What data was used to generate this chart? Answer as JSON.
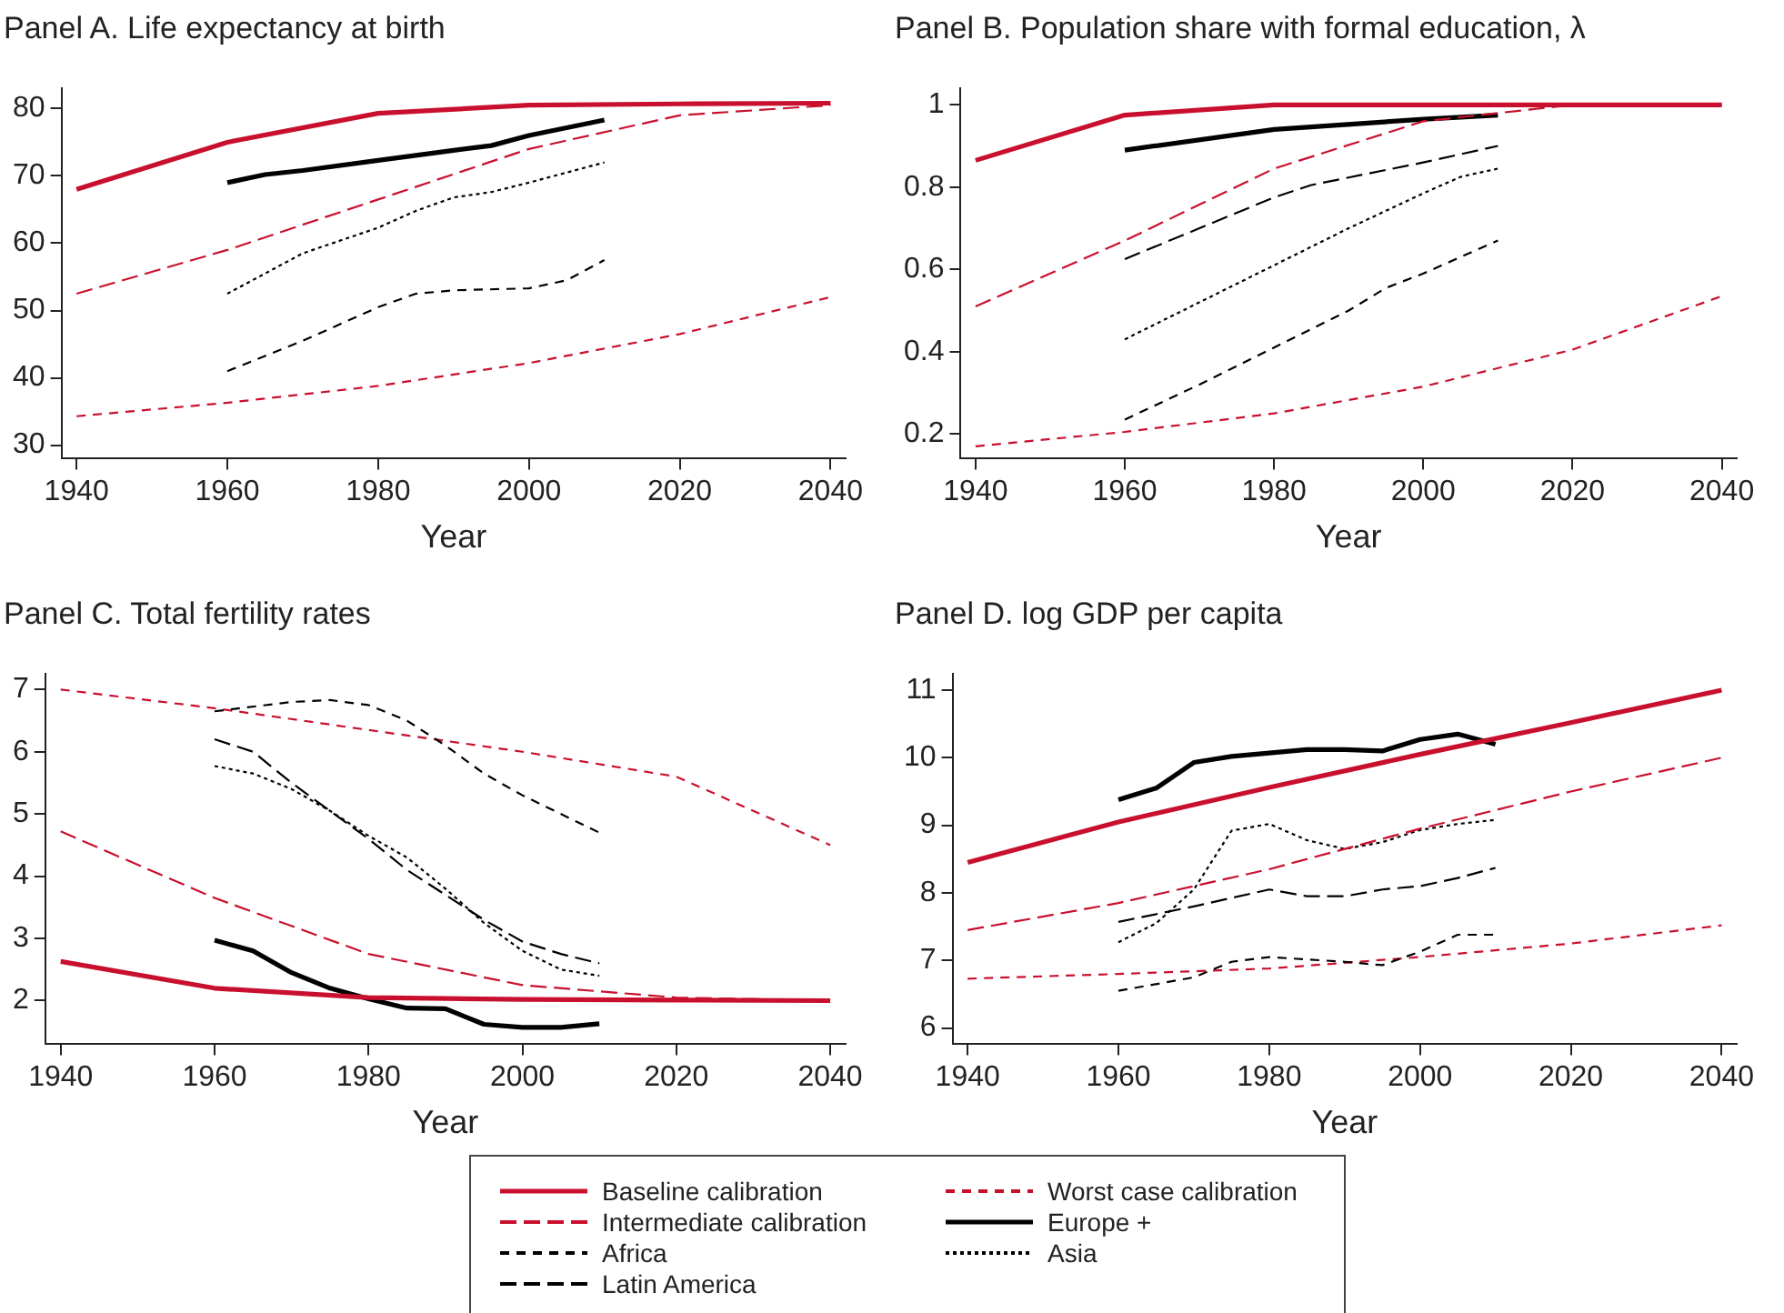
{
  "chart_data": [
    {
      "type": "line",
      "title": "Panel A. Life expectancy at birth",
      "xlabel": "Year",
      "xlim": [
        1938,
        2042
      ],
      "xticks": [
        1940,
        1960,
        1980,
        2000,
        2020,
        2040
      ],
      "ylim": [
        28,
        83
      ],
      "yticks": [
        30,
        40,
        50,
        60,
        70,
        80
      ],
      "grid": false,
      "marker": "none",
      "series": [
        {
          "color": "#c8102e",
          "line_style": "solid",
          "x": [
            1940,
            1960,
            1980,
            2000,
            2020,
            2040
          ],
          "values": [
            68,
            75,
            79.3,
            80.5,
            80.7,
            80.8
          ]
        },
        {
          "color": "#c8102e",
          "line_style": "longdash",
          "x": [
            1940,
            1960,
            1980,
            2000,
            2020,
            2040
          ],
          "values": [
            52.5,
            59,
            66.5,
            74,
            79,
            80.5
          ]
        },
        {
          "color": "#000000",
          "line_style": "dashed",
          "x": [
            1960,
            1970,
            1980,
            1985,
            1990,
            2000,
            2005,
            2010
          ],
          "values": [
            41,
            45.5,
            50.5,
            52.5,
            53,
            53.3,
            54.5,
            57.5
          ]
        },
        {
          "color": "#c8102e",
          "line_style": "dashed",
          "x": [
            1940,
            1960,
            1980,
            2000,
            2020,
            2040
          ],
          "values": [
            34.3,
            36.3,
            38.8,
            42.2,
            46.5,
            52
          ]
        },
        {
          "color": "#000000",
          "line_style": "solid",
          "x": [
            1960,
            1965,
            1970,
            1980,
            1990,
            1995,
            2000,
            2010
          ],
          "values": [
            69,
            70.2,
            70.8,
            72.3,
            73.8,
            74.5,
            76,
            78.3
          ]
        },
        {
          "color": "#000000",
          "line_style": "dotted",
          "x": [
            1960,
            1970,
            1980,
            1985,
            1990,
            1995,
            2000,
            2010
          ],
          "values": [
            52.5,
            58.5,
            62.3,
            64.8,
            66.8,
            67.6,
            69,
            72
          ]
        }
      ]
    },
    {
      "type": "line",
      "title": "Panel B. Population share with formal education, λ",
      "xlabel": "Year",
      "xlim": [
        1938,
        2042
      ],
      "xticks": [
        1940,
        1960,
        1980,
        2000,
        2020,
        2040
      ],
      "ylim": [
        0.14,
        1.04
      ],
      "yticks": [
        0.2,
        0.4,
        0.6,
        0.8,
        1
      ],
      "grid": false,
      "legend": "bottom",
      "marker": "none",
      "series": [
        {
          "name": "Baseline calibration",
          "color": "#c8102e",
          "line_style": "solid",
          "x": [
            1940,
            1960,
            1980,
            2000,
            2020,
            2040
          ],
          "values": [
            0.865,
            0.975,
            1,
            1,
            1,
            1
          ]
        },
        {
          "name": "Intermediate calibration",
          "color": "#c8102e",
          "line_style": "longdash",
          "x": [
            1940,
            1960,
            1980,
            2000,
            2020,
            2040
          ],
          "values": [
            0.51,
            0.67,
            0.845,
            0.96,
            1,
            1
          ]
        },
        {
          "name": "Africa",
          "color": "#000000",
          "line_style": "dashed",
          "x": [
            1960,
            1970,
            1980,
            1990,
            1995,
            2000,
            2010
          ],
          "values": [
            0.235,
            0.32,
            0.41,
            0.5,
            0.555,
            0.59,
            0.67
          ]
        },
        {
          "name": "Latin America",
          "color": "#000000",
          "line_style": "longdash",
          "x": [
            1960,
            1970,
            1980,
            1985,
            2000,
            2010
          ],
          "values": [
            0.625,
            0.7,
            0.775,
            0.805,
            0.86,
            0.9
          ]
        },
        {
          "name": "Worst case calibration",
          "color": "#c8102e",
          "line_style": "dashed",
          "x": [
            1940,
            1960,
            1980,
            2000,
            2020,
            2040
          ],
          "values": [
            0.17,
            0.205,
            0.25,
            0.315,
            0.405,
            0.535
          ]
        },
        {
          "name": "Europe +",
          "color": "#000000",
          "line_style": "solid",
          "x": [
            1960,
            1980,
            2000,
            2010
          ],
          "values": [
            0.89,
            0.94,
            0.965,
            0.975
          ]
        },
        {
          "name": "Asia",
          "color": "#000000",
          "line_style": "dotted",
          "x": [
            1960,
            1980,
            1990,
            2000,
            2005,
            2010
          ],
          "values": [
            0.43,
            0.61,
            0.7,
            0.785,
            0.825,
            0.845
          ]
        }
      ]
    },
    {
      "type": "line",
      "title": "Panel C. Total fertility rates",
      "xlabel": "Year",
      "xlim": [
        1938,
        2042
      ],
      "xticks": [
        1940,
        1960,
        1980,
        2000,
        2020,
        2040
      ],
      "ylim": [
        1.3,
        7.25
      ],
      "yticks": [
        2,
        3,
        4,
        5,
        6,
        7
      ],
      "grid": false,
      "marker": "none",
      "series": [
        {
          "color": "#c8102e",
          "line_style": "solid",
          "x": [
            1940,
            1960,
            1980,
            2000,
            2020,
            2040
          ],
          "values": [
            2.63,
            2.2,
            2.05,
            2.02,
            2.01,
            2
          ]
        },
        {
          "color": "#c8102e",
          "line_style": "longdash",
          "x": [
            1940,
            1960,
            1980,
            2000,
            2020,
            2040
          ],
          "values": [
            4.72,
            3.65,
            2.75,
            2.25,
            2.05,
            2
          ]
        },
        {
          "color": "#000000",
          "line_style": "dashed",
          "x": [
            1960,
            1970,
            1975,
            1980,
            1985,
            1990,
            1995,
            2000,
            2010
          ],
          "values": [
            6.65,
            6.8,
            6.83,
            6.75,
            6.5,
            6.1,
            5.65,
            5.3,
            4.7
          ]
        },
        {
          "color": "#000000",
          "line_style": "longdash",
          "x": [
            1960,
            1965,
            1970,
            1975,
            1980,
            1985,
            1990,
            1995,
            2000,
            2005,
            2010
          ],
          "values": [
            6.2,
            6,
            5.5,
            5.05,
            4.6,
            4.1,
            3.7,
            3.3,
            2.95,
            2.75,
            2.6
          ]
        },
        {
          "color": "#c8102e",
          "line_style": "dashed",
          "x": [
            1940,
            1960,
            1980,
            2000,
            2020,
            2040
          ],
          "values": [
            7,
            6.7,
            6.35,
            6,
            5.6,
            4.5
          ]
        },
        {
          "color": "#000000",
          "line_style": "solid",
          "x": [
            1960,
            1965,
            1970,
            1975,
            1980,
            1985,
            1990,
            1995,
            2000,
            2005,
            2010
          ],
          "values": [
            2.97,
            2.8,
            2.45,
            2.2,
            2.03,
            1.88,
            1.87,
            1.62,
            1.57,
            1.57,
            1.63
          ]
        },
        {
          "color": "#000000",
          "line_style": "dotted",
          "x": [
            1960,
            1965,
            1970,
            1975,
            1980,
            1985,
            1990,
            1995,
            2000,
            2005,
            2010
          ],
          "values": [
            5.77,
            5.65,
            5.4,
            5.05,
            4.65,
            4.3,
            3.8,
            3.25,
            2.8,
            2.5,
            2.4
          ]
        }
      ]
    },
    {
      "type": "line",
      "title": "Panel D. log GDP per capita",
      "xlabel": "Year",
      "xlim": [
        1938,
        2042
      ],
      "xticks": [
        1940,
        1960,
        1980,
        2000,
        2020,
        2040
      ],
      "ylim": [
        5.76,
        11.24
      ],
      "yticks": [
        6,
        7,
        8,
        9,
        10,
        11
      ],
      "grid": false,
      "marker": "none",
      "series": [
        {
          "color": "#c8102e",
          "line_style": "solid",
          "x": [
            1940,
            1960,
            1980,
            2000,
            2020,
            2040
          ],
          "values": [
            8.45,
            9.05,
            9.56,
            10.05,
            10.52,
            11
          ]
        },
        {
          "color": "#c8102e",
          "line_style": "longdash",
          "x": [
            1940,
            1960,
            1980,
            2000,
            2020,
            2040
          ],
          "values": [
            7.45,
            7.85,
            8.35,
            8.95,
            9.5,
            10
          ]
        },
        {
          "color": "#000000",
          "line_style": "dashed",
          "x": [
            1960,
            1970,
            1975,
            1980,
            1990,
            1995,
            2000,
            2005,
            2010
          ],
          "values": [
            6.55,
            6.75,
            6.98,
            7.05,
            6.98,
            6.93,
            7.13,
            7.38,
            7.38
          ]
        },
        {
          "color": "#000000",
          "line_style": "longdash",
          "x": [
            1960,
            1970,
            1980,
            1985,
            1990,
            1995,
            2000,
            2005,
            2010
          ],
          "values": [
            7.57,
            7.8,
            8.05,
            7.95,
            7.95,
            8.05,
            8.1,
            8.22,
            8.37
          ]
        },
        {
          "color": "#c8102e",
          "line_style": "dashed",
          "x": [
            1940,
            1960,
            1980,
            2000,
            2020,
            2040
          ],
          "values": [
            6.73,
            6.8,
            6.88,
            7.05,
            7.25,
            7.52
          ]
        },
        {
          "color": "#000000",
          "line_style": "solid",
          "x": [
            1960,
            1965,
            1970,
            1975,
            1980,
            1985,
            1990,
            1995,
            2000,
            2005,
            2010
          ],
          "values": [
            9.38,
            9.55,
            9.93,
            10.02,
            10.07,
            10.12,
            10.12,
            10.1,
            10.27,
            10.35,
            10.2
          ]
        },
        {
          "color": "#000000",
          "line_style": "dotted",
          "x": [
            1960,
            1965,
            1970,
            1975,
            1980,
            1985,
            1990,
            1995,
            2000,
            2005,
            2010
          ],
          "values": [
            7.27,
            7.55,
            8.05,
            8.92,
            9.02,
            8.78,
            8.65,
            8.75,
            8.93,
            9.02,
            9.08
          ]
        }
      ]
    }
  ]
}
